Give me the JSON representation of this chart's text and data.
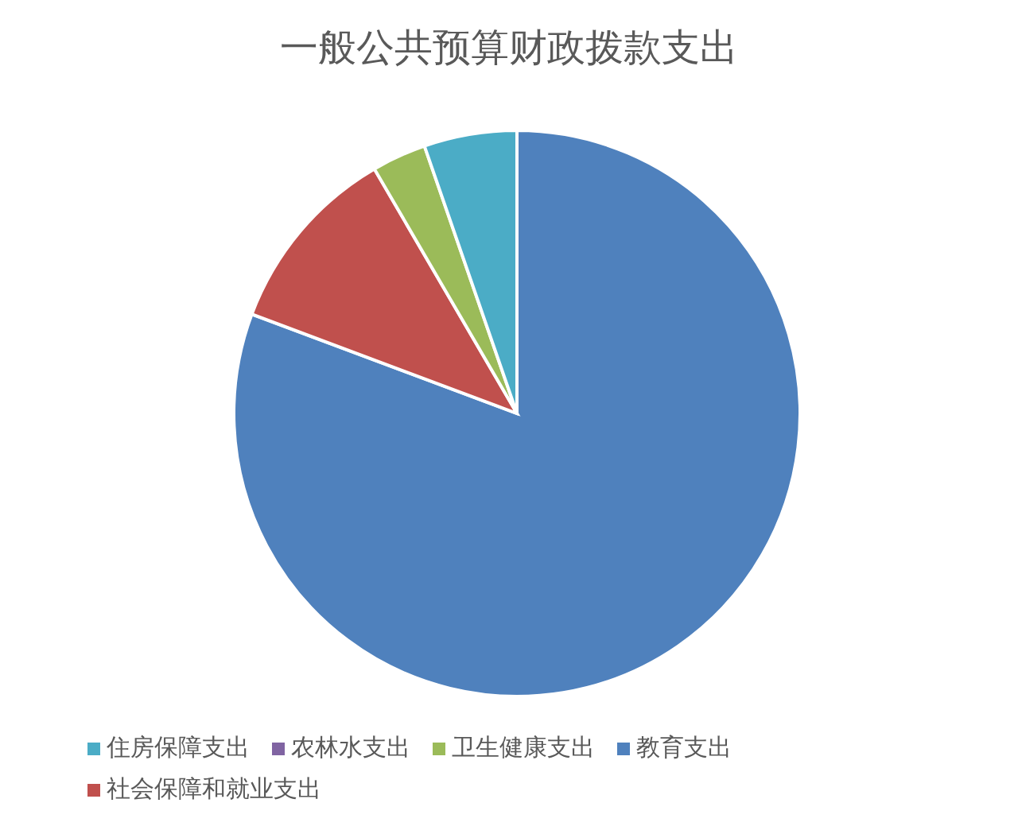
{
  "chart_data": {
    "type": "pie",
    "title": "一般公共预算财政拨款支出",
    "categories": [
      "教育支出",
      "社会保障和就业支出",
      "卫生健康支出",
      "农林水支出",
      "住房保障支出"
    ],
    "values": [
      80.7,
      10.9,
      3.1,
      0,
      5.3
    ],
    "colors": [
      "#4f81bd",
      "#c0504d",
      "#9bbb59",
      "#8064a2",
      "#4bacc6"
    ],
    "legend": "bottom"
  }
}
